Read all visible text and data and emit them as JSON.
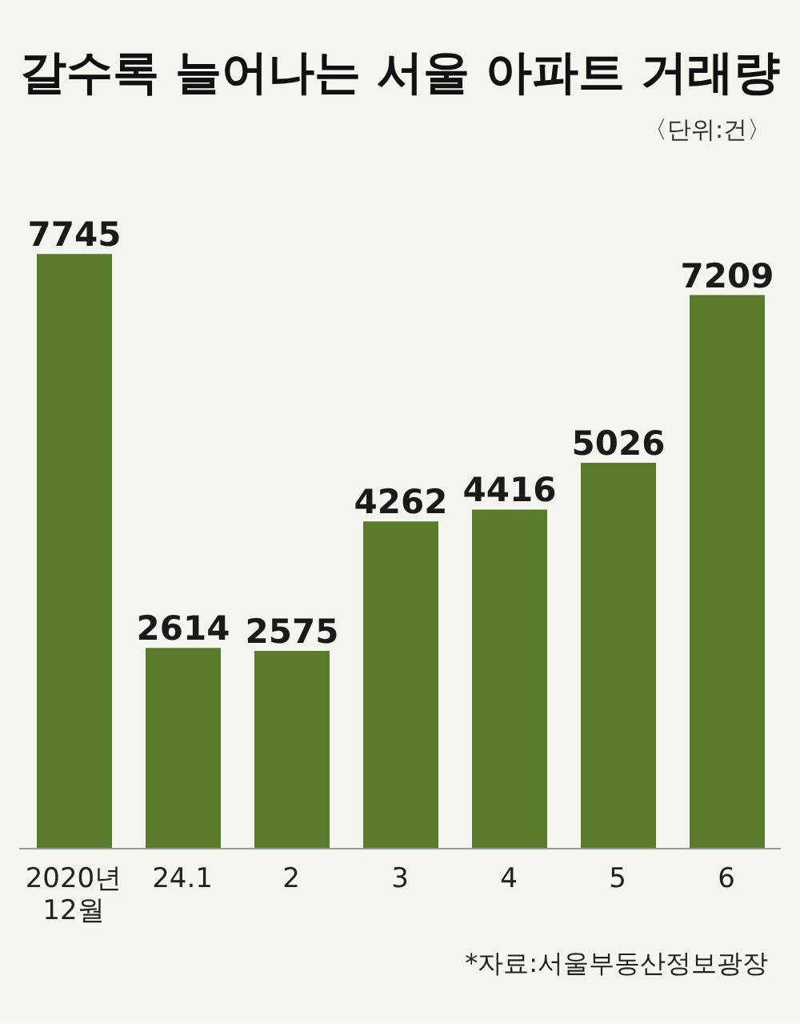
{
  "chart_data": {
    "type": "bar",
    "title": "갈수록 늘어나는 서울 아파트 거래량",
    "subtitle": "〈단위:건〉",
    "categories": [
      "2020년 12월",
      "24.1",
      "2",
      "3",
      "4",
      "5",
      "6"
    ],
    "values": [
      7745,
      2614,
      2575,
      4262,
      4416,
      5026,
      7209
    ],
    "color": "#5b7b2c",
    "data_labels": true,
    "annotations": [
      "*자료:서울부동산정보광장"
    ]
  }
}
